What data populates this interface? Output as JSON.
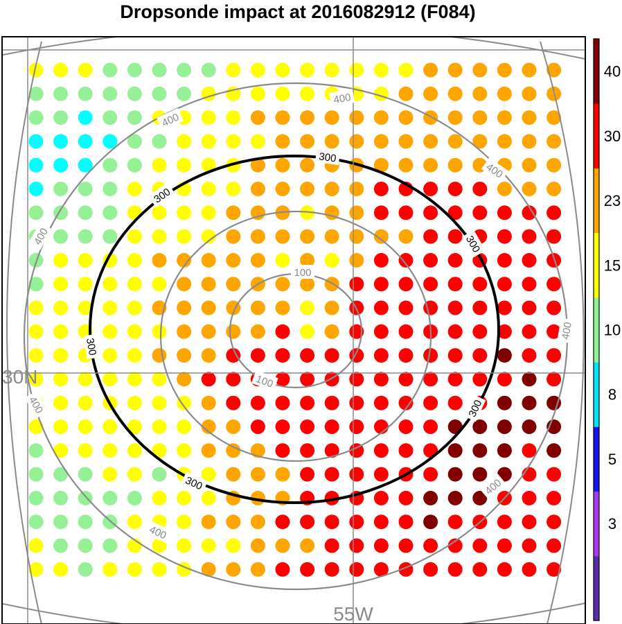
{
  "title": "Dropsonde impact at 2016082912 (F084)",
  "map_labels": {
    "lat_label": "30N",
    "lon_label": "55W"
  },
  "contours": {
    "gray_labels": [
      "100",
      "100",
      "400",
      "400",
      "400",
      "400",
      "400",
      "400",
      "400",
      "400"
    ],
    "black_labels": [
      "300",
      "300",
      "300",
      "300",
      "300",
      "300"
    ]
  },
  "colorbar": {
    "colors": [
      "#5b2ca8",
      "#a63cf0",
      "#1414f5",
      "#00e6f5",
      "#96f096",
      "#ffff00",
      "#ffa500",
      "#ff0000",
      "#800000"
    ],
    "tick_labels": [
      "3",
      "5",
      "8",
      "10",
      "15",
      "23",
      "30",
      "40"
    ]
  },
  "legend_colors": {
    "cyan": "#00ffff",
    "lightgreen": "#96f096",
    "yellow": "#ffff00",
    "orange": "#ffa500",
    "red": "#ff0000",
    "darkred": "#800000"
  },
  "dot_grid": {
    "rows": [
      "YYYGGGGGYYYYYYYYOOOOOO",
      "GGGGGGGYYYYYYYYOOOOOOO",
      "GGCGGYYYYOOOOOOOOOOOOO",
      "CCCCGGYYYYOOOOOOOOOOOO",
      "CCCGGYYYYOOOOOOOOOOOOO",
      "CGGGYYYYYOOOOORRRRROOO",
      "GGGGYYYYOOOYOORRRRRRRR",
      "GGGGYYYYOOOOOOOORRRRRR",
      "GYYYYOOOOOYOYORRRRRRRR",
      "GYYYYYOOOOOOORRRRRRRRR",
      "YYYYYOOOOOOYORRRRRRRRR",
      "YYYYYYOOOORYORRRRRRRRR",
      "YYYYYOOORRRRRRRRRRRDRR",
      "YYYYYYORRRRRRRRRRRRRDR",
      "YYYYYYYORRRRRRRRRRRDDD",
      "YYYYYYYOORRRRRRRRDDDDD",
      "GYYYYYYOOORRRRRRRDDDRD",
      "GGGYYGYYOOORRRRRRDDDRR",
      "GGGGGYYYOOORRRRRDDDRRR",
      "GGGGYYYOOORRRRRRDRRRRR",
      "YGGGYYYYYOOORRRRRRRRRR",
      "YYGYYYYOOORRRRRRRRRRRR"
    ]
  }
}
